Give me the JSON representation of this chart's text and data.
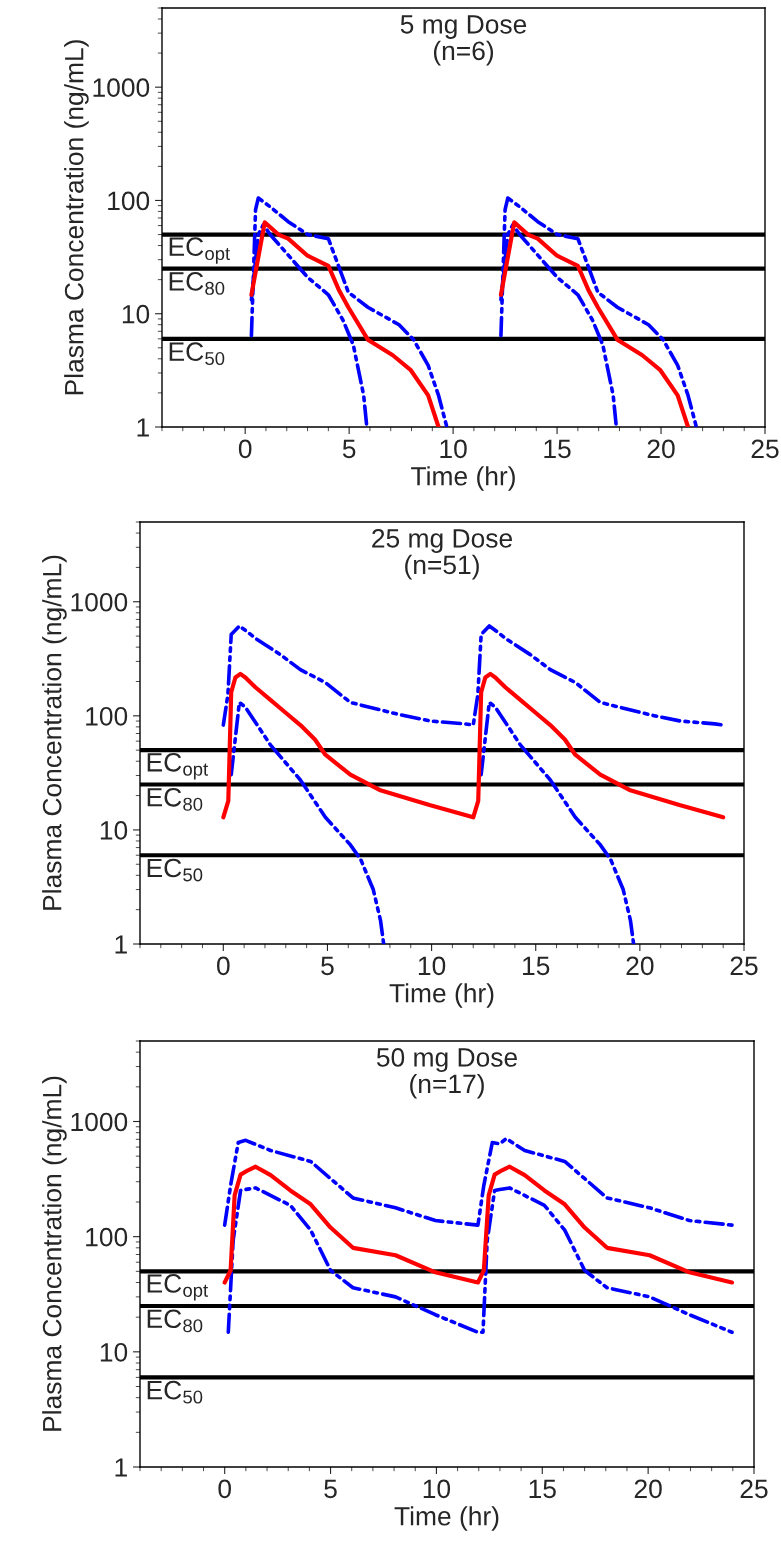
{
  "chart_data": [
    {
      "type": "line",
      "title": "5 mg Dose\n(n=6)",
      "xlabel": "Time (hr)",
      "ylabel": "Plasma Concentration (ng/mL)",
      "log": "y",
      "xlim": [
        -4,
        25
      ],
      "ylim": [
        1,
        5000
      ],
      "xticks": [
        0,
        5,
        10,
        15,
        20,
        25
      ],
      "yticks": [
        1,
        10,
        100,
        1000
      ],
      "grid": false,
      "legend": false,
      "ref_lines": [
        {
          "axis": "y",
          "value": 50,
          "label": "EC$_{opt}$"
        },
        {
          "axis": "y",
          "value": 25,
          "label": "EC$_{80}$"
        },
        {
          "axis": "y",
          "value": 6,
          "label": "EC$_{50}$"
        }
      ],
      "series": [
        {
          "color": "#0000ff",
          "line_style": "dashed",
          "x": [
            0.3,
            0.5,
            0.63,
            1.2,
            2.07,
            3.0,
            4.0,
            4.96,
            5.9,
            7.4,
            8.1,
            8.8,
            9.3,
            9.7,
            11,
            12.3,
            12.5,
            12.63,
            13.2,
            14.07,
            15.0,
            16.0,
            16.96,
            17.9,
            19.4,
            20.1,
            20.8,
            21.3,
            21.7
          ],
          "values": [
            6.4,
            83,
            105,
            88,
            65,
            50,
            46,
            15.5,
            11.4,
            8.0,
            5.9,
            3.5,
            1.9,
            1,
            null,
            6.4,
            83,
            105,
            88,
            65,
            50,
            46,
            15.5,
            11.4,
            8.0,
            5.9,
            3.5,
            1.9,
            1
          ]
        },
        {
          "color": "#0000ff",
          "line_style": "dashed",
          "x": [
            0.3,
            0.63,
            0.87,
            1.2,
            1.83,
            3.0,
            4.0,
            4.7,
            5.2,
            5.7,
            5.85,
            9,
            12.3,
            12.63,
            12.87,
            13.2,
            13.83,
            15.0,
            16.0,
            16.7,
            17.2,
            17.7,
            17.85
          ],
          "values": [
            13.3,
            50,
            61,
            50,
            37,
            21,
            14.7,
            8.8,
            5.3,
            1.9,
            1,
            null,
            13.3,
            50,
            61,
            50,
            37,
            21,
            14.7,
            8.8,
            5.3,
            1.9,
            1
          ]
        },
        {
          "color": "#ff0000",
          "line_style": "solid",
          "x": [
            0.3,
            0.94,
            1.6,
            2.07,
            3.0,
            4.0,
            4.5,
            4.96,
            5.9,
            7.1,
            7.95,
            8.8,
            9.3,
            11,
            12.3,
            12.94,
            13.6,
            14.07,
            15.0,
            16.0,
            16.5,
            16.96,
            17.9,
            19.1,
            19.95,
            20.8,
            21.3
          ],
          "values": [
            14.7,
            64,
            50,
            46,
            32.5,
            26.5,
            16.3,
            11.4,
            5.9,
            4.3,
            3.2,
            1.9,
            1,
            null,
            14.7,
            64,
            50,
            46,
            32.5,
            26.5,
            16.3,
            11.4,
            5.9,
            4.3,
            3.2,
            1.9,
            1
          ]
        }
      ]
    },
    {
      "type": "line",
      "title": "25 mg Dose\n(n=51)",
      "xlabel": "Time (hr)",
      "ylabel": "Plasma Concentration (ng/mL)",
      "log": "y",
      "xlim": [
        -4,
        25
      ],
      "ylim": [
        1,
        5000
      ],
      "xticks": [
        0,
        5,
        10,
        15,
        20,
        25
      ],
      "yticks": [
        1,
        10,
        100,
        1000
      ],
      "grid": false,
      "legend": false,
      "ref_lines": [
        {
          "axis": "y",
          "value": 50,
          "label": "EC$_{opt}$"
        },
        {
          "axis": "y",
          "value": 25,
          "label": "EC$_{80}$"
        },
        {
          "axis": "y",
          "value": 6,
          "label": "EC$_{50}$"
        }
      ],
      "series": [
        {
          "color": "#0000ff",
          "line_style": "dashed",
          "x": [
            0,
            0.22,
            0.38,
            0.77,
            1.18,
            1.54,
            2.74,
            3.7,
            4.9,
            6.1,
            8.5,
            9.95,
            11.6,
            12.0,
            12.22,
            12.38,
            12.77,
            13.18,
            13.54,
            14.74,
            15.7,
            16.9,
            18.1,
            20.5,
            21.95,
            23.6,
            24.0
          ],
          "values": [
            83,
            153,
            516,
            613,
            541,
            478,
            344,
            254,
            196,
            131,
            102,
            90,
            85,
            83,
            153,
            516,
            613,
            541,
            478,
            344,
            254,
            196,
            131,
            102,
            90,
            85,
            83
          ]
        },
        {
          "color": "#0000ff",
          "line_style": "dashed",
          "x": [
            0.38,
            0.77,
            1.06,
            2.26,
            3.7,
            4.9,
            6.1,
            6.6,
            7.2,
            7.55,
            7.7,
            10,
            12.38,
            12.77,
            13.06,
            14.26,
            15.7,
            16.9,
            18.1,
            18.6,
            19.2,
            19.55,
            19.7
          ],
          "values": [
            30.5,
            131,
            119,
            55.7,
            27.4,
            12.9,
            7.4,
            5.5,
            3.0,
            1.6,
            1,
            null,
            30.5,
            131,
            119,
            55.7,
            27.4,
            12.9,
            7.4,
            5.5,
            3.0,
            1.6,
            1
          ]
        },
        {
          "color": "#ff0000",
          "line_style": "solid",
          "x": [
            0,
            0.24,
            0.38,
            0.58,
            0.82,
            1.06,
            1.54,
            2.26,
            2.98,
            3.7,
            4.4,
            4.9,
            6.1,
            7.5,
            9.9,
            12.0,
            12.24,
            12.38,
            12.58,
            12.82,
            13.06,
            13.54,
            14.26,
            14.98,
            15.7,
            16.4,
            16.9,
            18.1,
            19.5,
            21.9,
            24.0
          ],
          "values": [
            12.9,
            18,
            161,
            217,
            233,
            217,
            178,
            138,
            107,
            83,
            62,
            45.6,
            30.5,
            22.4,
            16.5,
            12.9,
            18,
            161,
            217,
            233,
            217,
            178,
            138,
            107,
            83,
            62,
            45.6,
            30.5,
            22.4,
            16.5,
            12.9
          ]
        }
      ]
    },
    {
      "type": "line",
      "title": "50 mg Dose\n(n=17)",
      "xlabel": "Time (hr)",
      "ylabel": "Plasma Concentration (ng/mL)",
      "log": "y",
      "xlim": [
        -4,
        25
      ],
      "ylim": [
        1,
        5000
      ],
      "xticks": [
        0,
        5,
        10,
        15,
        20,
        25
      ],
      "yticks": [
        1,
        10,
        100,
        1000
      ],
      "grid": false,
      "legend": false,
      "ref_lines": [
        {
          "axis": "y",
          "value": 50,
          "label": "EC$_{opt}$"
        },
        {
          "axis": "y",
          "value": 25,
          "label": "EC$_{80}$"
        },
        {
          "axis": "y",
          "value": 6,
          "label": "EC$_{50}$"
        }
      ],
      "series": [
        {
          "color": "#0000ff",
          "line_style": "dashed",
          "x": [
            0,
            0.28,
            0.64,
            0.99,
            2.17,
            4.06,
            6.06,
            8.07,
            9.95,
            11.96,
            12.24,
            12.64,
            12.99,
            13.3,
            14.17,
            16.06,
            18.06,
            20.07,
            21.95,
            23.96
          ],
          "values": [
            126,
            279,
            657,
            686,
            560,
            450,
            217,
            178,
            138,
            126,
            279,
            657,
            640,
            710,
            560,
            450,
            217,
            178,
            138,
            126
          ]
        },
        {
          "color": "#0000ff",
          "line_style": "dashed",
          "x": [
            0.17,
            0.4,
            0.75,
            0.99,
            1.46,
            3.1,
            4.06,
            5.0,
            6.06,
            8.07,
            9.95,
            11.96,
            12.2,
            12.4,
            12.75,
            12.99,
            13.46,
            15.1,
            16.06,
            17.0,
            18.06,
            20.07,
            21.95,
            23.96
          ],
          "values": [
            14.8,
            93,
            252,
            257,
            265,
            187,
            114,
            51,
            36,
            30,
            21,
            14.8,
            14.8,
            93,
            252,
            257,
            265,
            187,
            114,
            51,
            36,
            30,
            21,
            14.8
          ]
        },
        {
          "color": "#ff0000",
          "line_style": "solid",
          "x": [
            0,
            0.28,
            0.47,
            0.75,
            1.1,
            1.46,
            2.17,
            3.1,
            4.06,
            5.0,
            6.06,
            8.07,
            9.95,
            11.96,
            12.24,
            12.47,
            12.75,
            13.1,
            13.46,
            14.17,
            15.1,
            16.06,
            17.0,
            18.06,
            20.07,
            21.95,
            23.96
          ],
          "values": [
            40,
            51,
            228,
            346,
            377,
            405,
            342,
            252,
            191,
            120,
            80,
            69,
            49,
            40,
            51,
            228,
            346,
            377,
            405,
            342,
            252,
            191,
            120,
            80,
            69,
            49,
            40
          ]
        }
      ]
    }
  ]
}
